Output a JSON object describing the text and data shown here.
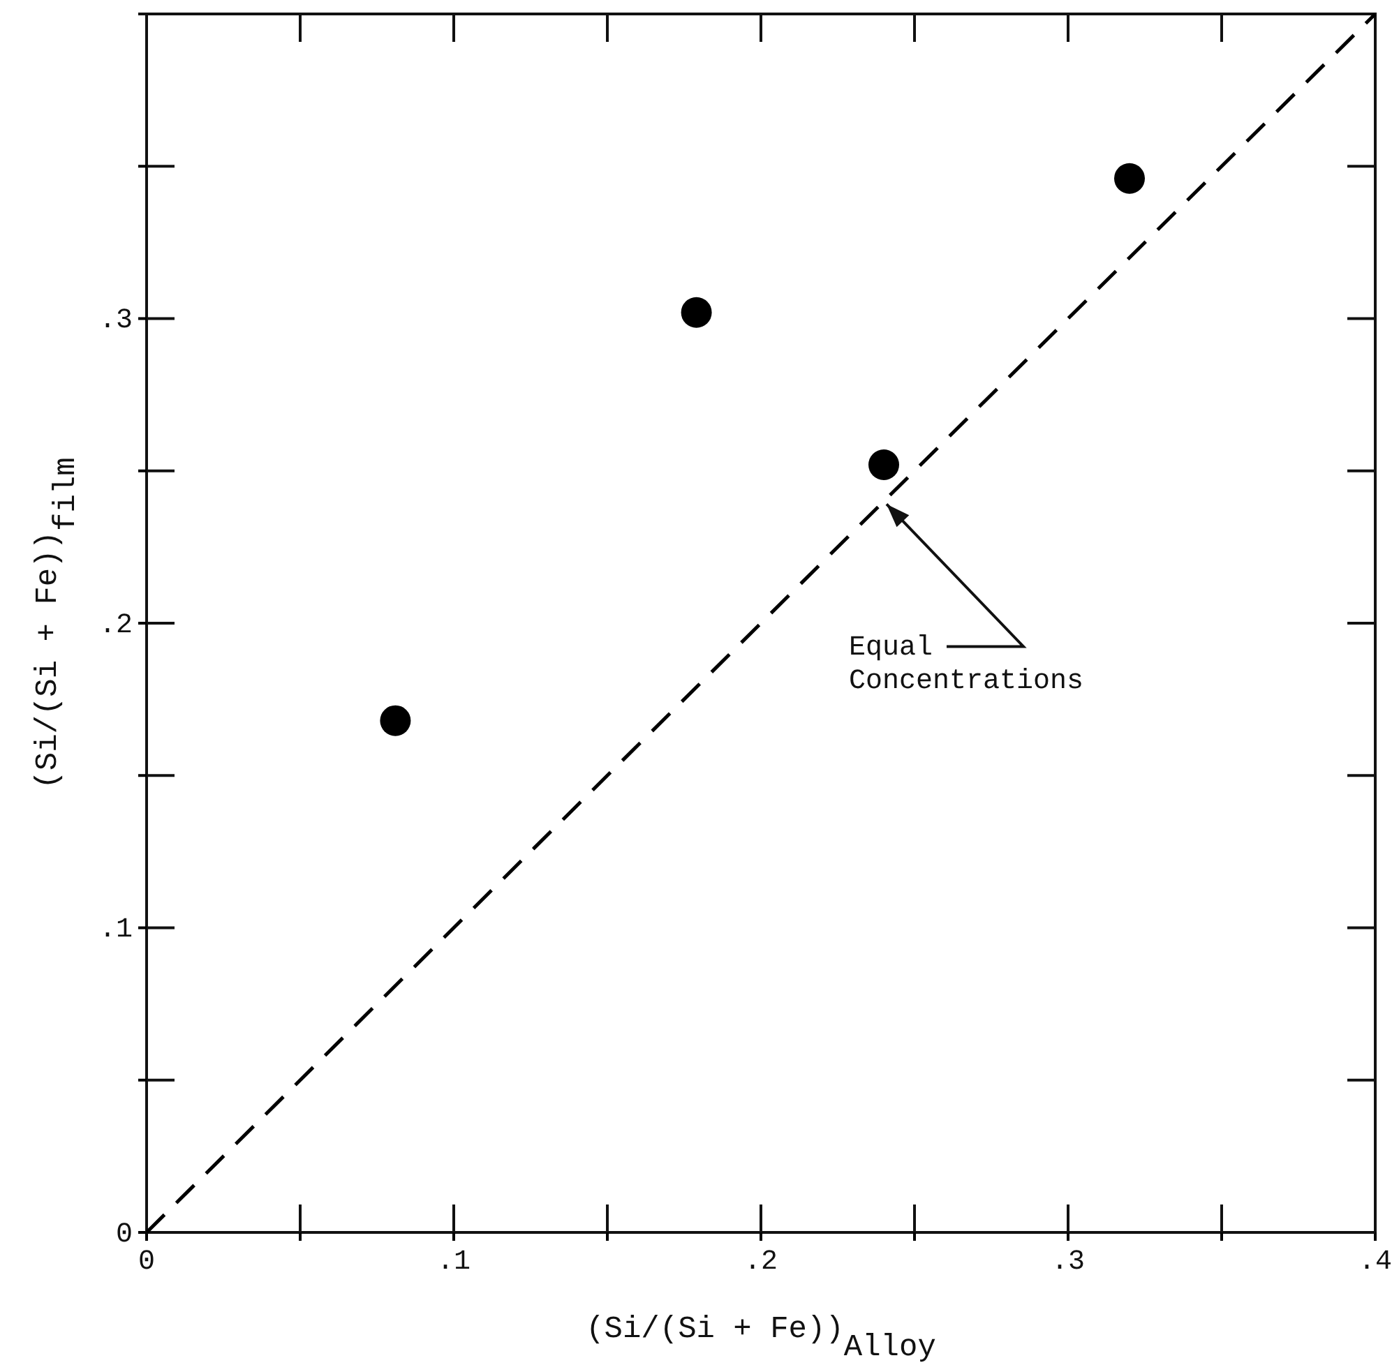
{
  "chart_data": {
    "type": "scatter",
    "xlabel": "(Si/(Si + Fe))$_{Alloy}$",
    "ylabel": "(Si/(Si + Fe))$_{film}$",
    "xlim": [
      0,
      0.4
    ],
    "ylim": [
      0,
      0.4
    ],
    "xticks": [
      0,
      {
        "value": 0.05,
        "label": null
      },
      {
        "value": 0.1,
        "label": ".1"
      },
      {
        "value": 0.15,
        "label": null
      },
      {
        "value": 0.2,
        "label": ".2"
      },
      {
        "value": 0.25,
        "label": null
      },
      {
        "value": 0.3,
        "label": ".3"
      },
      {
        "value": 0.35,
        "label": null
      },
      {
        "value": 0.4,
        "label": ".4"
      }
    ],
    "yticks": [
      0,
      {
        "value": 0.05,
        "label": null
      },
      {
        "value": 0.1,
        "label": ".1"
      },
      {
        "value": 0.15,
        "label": null
      },
      {
        "value": 0.2,
        "label": ".2"
      },
      {
        "value": 0.25,
        "label": null
      },
      {
        "value": 0.3,
        "label": ".3"
      },
      {
        "value": 0.35,
        "label": null
      }
    ],
    "grid": false,
    "series": [
      {
        "type": "scatter",
        "color": "#000000",
        "marker": "circle",
        "x": [
          0.081,
          0.179,
          0.24,
          0.32
        ],
        "values": [
          0.168,
          0.302,
          0.252,
          0.346
        ]
      },
      {
        "type": "line",
        "color": "#000000",
        "marker": "none",
        "line_style": "dashed",
        "x": [
          0,
          0.4
        ],
        "values": [
          0,
          0.4
        ]
      }
    ],
    "annotations": [
      {
        "text": "Equal Concentrations",
        "x": 0.24,
        "y": 0.24
      }
    ]
  }
}
